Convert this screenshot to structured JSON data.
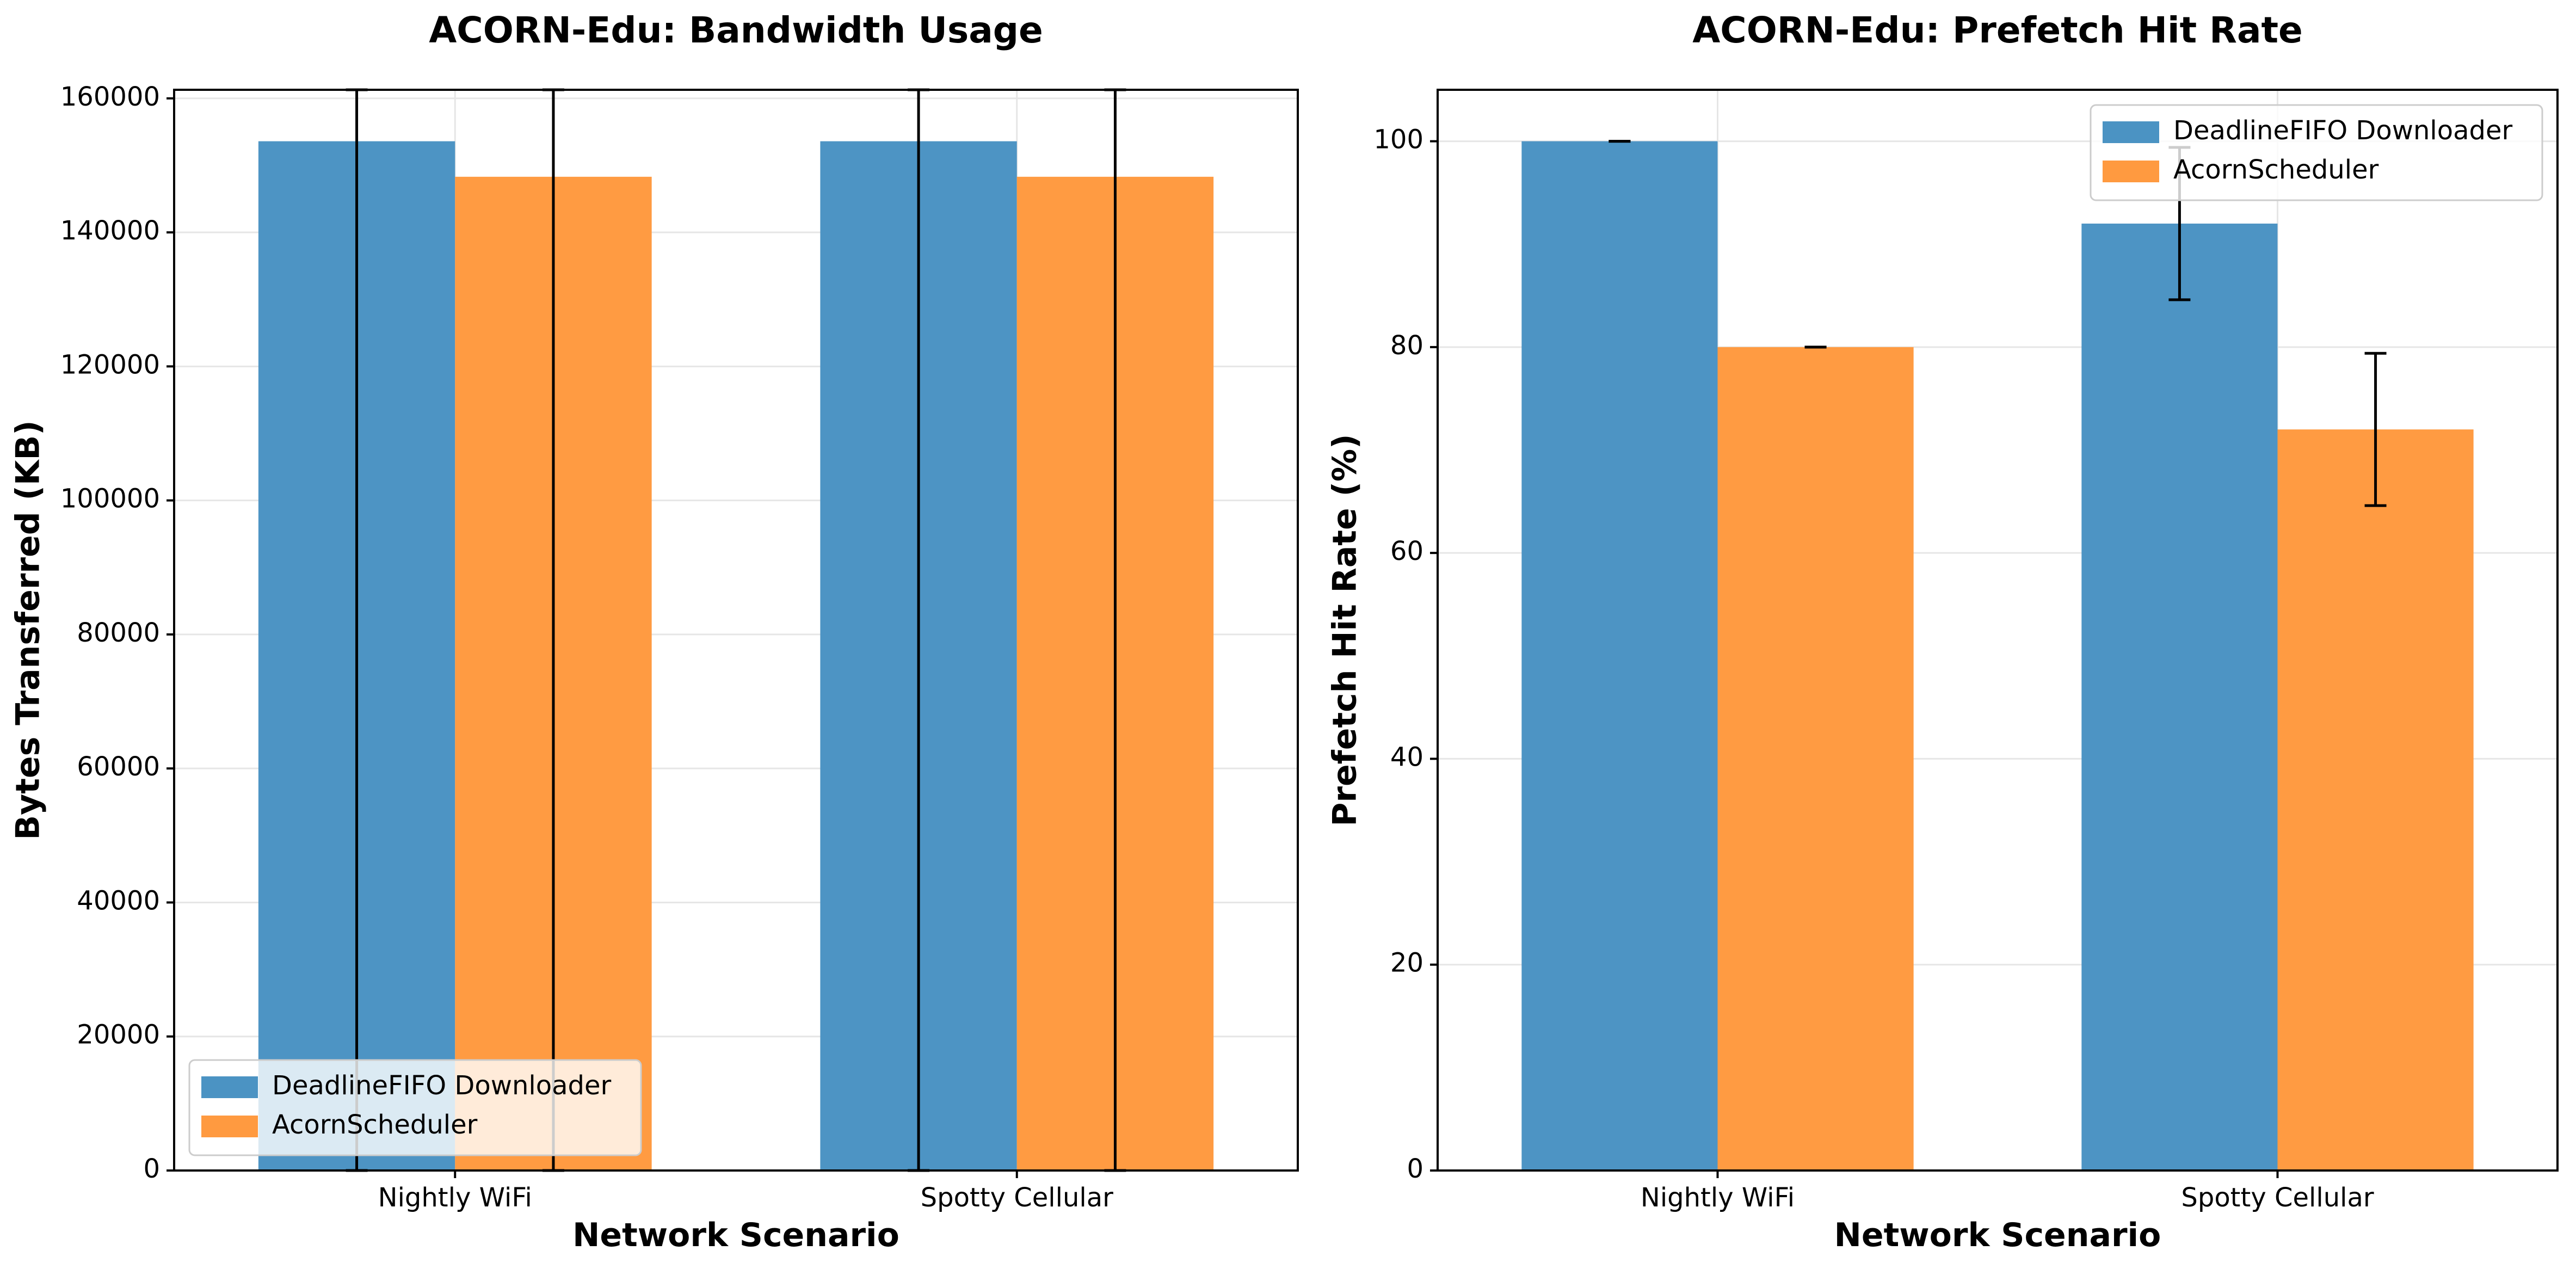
{
  "chart_data": [
    {
      "type": "bar",
      "title": "ACORN-Edu: Bandwidth Usage",
      "xlabel": "Network Scenario",
      "ylabel": "Bytes Transferred (KB)",
      "categories": [
        "Nightly WiFi",
        "Spotty Cellular"
      ],
      "series": [
        {
          "name": "DeadlineFIFO Downloader",
          "values": [
            153600,
            153600
          ],
          "errors": [
            153600,
            153600
          ],
          "color": "#4b93c3"
        },
        {
          "name": "AcornScheduler",
          "values": [
            148300,
            148300
          ],
          "errors": [
            148300,
            148300
          ],
          "color": "#ff9a40"
        }
      ],
      "ylim": [
        0,
        161280
      ],
      "yticks": [
        0,
        20000,
        40000,
        60000,
        80000,
        100000,
        120000,
        140000,
        160000
      ],
      "grid": true,
      "legend_position": "lower-left"
    },
    {
      "type": "bar",
      "title": "ACORN-Edu: Prefetch Hit Rate",
      "xlabel": "Network Scenario",
      "ylabel": "Prefetch Hit Rate (%)",
      "categories": [
        "Nightly WiFi",
        "Spotty Cellular"
      ],
      "series": [
        {
          "name": "DeadlineFIFO Downloader",
          "values": [
            100,
            92
          ],
          "errors": [
            0,
            7.4
          ],
          "color": "#4b93c3"
        },
        {
          "name": "AcornScheduler",
          "values": [
            80,
            72
          ],
          "errors": [
            0,
            7.4
          ],
          "color": "#ff9a40"
        }
      ],
      "ylim": [
        0,
        105
      ],
      "yticks": [
        0,
        20,
        40,
        60,
        80,
        100
      ],
      "grid": true,
      "legend_position": "upper-right"
    }
  ]
}
